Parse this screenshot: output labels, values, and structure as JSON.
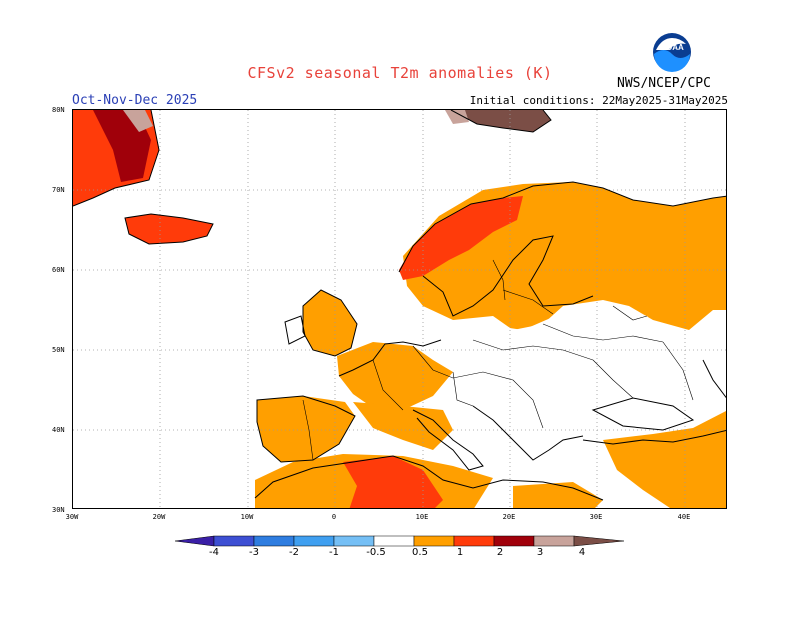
{
  "header": {
    "title": "CFSv2 seasonal T2m anomalies (K)",
    "season": "Oct-Nov-Dec 2025",
    "initial_conditions": "Initial conditions: 22May2025-31May2025",
    "agency": "NWS/NCEP/CPC",
    "logo_text": "NOAA"
  },
  "axes": {
    "lat_labels": [
      "80N",
      "70N",
      "60N",
      "50N",
      "40N",
      "30N"
    ],
    "lon_labels": [
      "30W",
      "20W",
      "10W",
      "0",
      "10E",
      "20E",
      "30E",
      "40E"
    ]
  },
  "colorbar": {
    "labels": [
      "-4",
      "-3",
      "-2",
      "-1",
      "-0.5",
      "0.5",
      "1",
      "2",
      "3",
      "4"
    ],
    "colors": [
      "#3a1fa6",
      "#3d4fd3",
      "#2f7de0",
      "#3f9ff0",
      "#75bff5",
      "#ffffff",
      "#ff9f00",
      "#ff3b0a",
      "#a0000a",
      "#c8a39b",
      "#7b4e46"
    ]
  },
  "legend": {
    "category_colors": {
      "0.5 to 1": "#ff9f00",
      "1 to 2": "#ff3b0a",
      "2 to 3": "#a0000a",
      "3 to 4": "#c8a39b",
      "above 4": "#7b4e46"
    }
  }
}
